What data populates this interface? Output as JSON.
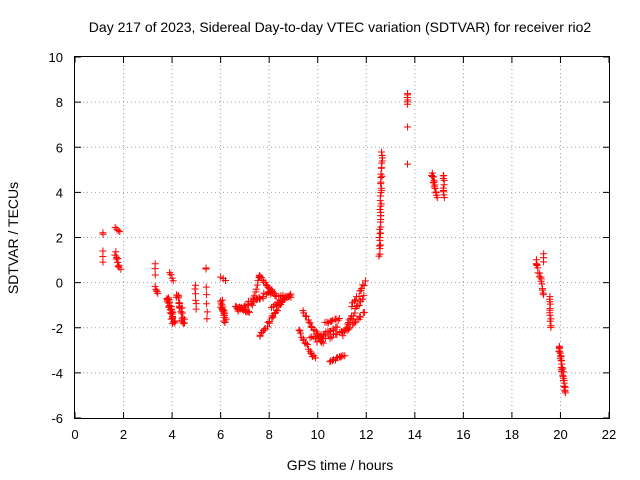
{
  "chart_data": {
    "type": "scatter",
    "title": "Day 217 of 2023, Sidereal Day-to-day VTEC variation (SDTVAR) for receiver rio2",
    "xlabel": "GPS time / hours",
    "ylabel": "SDTVAR / TECUs",
    "xlim": [
      0,
      22
    ],
    "ylim": [
      -6,
      10
    ],
    "xticks": [
      "0",
      "2",
      "4",
      "6",
      "8",
      "10",
      "12",
      "14",
      "16",
      "18",
      "20",
      "22"
    ],
    "yticks": [
      "-6",
      "-4",
      "-2",
      "0",
      "2",
      "4",
      "6",
      "8",
      "10"
    ],
    "grid": true,
    "marker": "+",
    "color": "#ff0000",
    "segments": [
      {
        "x0": 1.15,
        "y0": 2.15,
        "x1": 1.15,
        "y1": 2.2,
        "n": 2,
        "jitter": 0.02
      },
      {
        "x0": 1.15,
        "y0": 1.4,
        "x1": 1.15,
        "y1": 0.9,
        "n": 3,
        "jitter": 0.02
      },
      {
        "x0": 1.65,
        "y0": 2.45,
        "x1": 1.85,
        "y1": 2.25,
        "n": 4,
        "jitter": 0.04
      },
      {
        "x0": 1.65,
        "y0": 1.3,
        "x1": 1.85,
        "y1": 0.6,
        "n": 10,
        "jitter": 0.2
      },
      {
        "x0": 3.3,
        "y0": 0.85,
        "x1": 3.3,
        "y1": 0.35,
        "n": 3,
        "jitter": 0.05
      },
      {
        "x0": 3.3,
        "y0": -0.2,
        "x1": 3.4,
        "y1": -0.45,
        "n": 5,
        "jitter": 0.1
      },
      {
        "x0": 3.9,
        "y0": 0.45,
        "x1": 4.05,
        "y1": 0.1,
        "n": 4,
        "jitter": 0.05
      },
      {
        "x0": 3.8,
        "y0": -0.6,
        "x1": 4.1,
        "y1": -1.9,
        "n": 30,
        "jitter": 0.3
      },
      {
        "x0": 4.2,
        "y0": -0.5,
        "x1": 4.5,
        "y1": -1.8,
        "n": 24,
        "jitter": 0.3
      },
      {
        "x0": 4.95,
        "y0": -0.1,
        "x1": 5.0,
        "y1": -1.2,
        "n": 6,
        "jitter": 0.1
      },
      {
        "x0": 5.4,
        "y0": 0.6,
        "x1": 5.4,
        "y1": 0.65,
        "n": 2,
        "jitter": 0.02
      },
      {
        "x0": 5.4,
        "y0": -0.2,
        "x1": 5.45,
        "y1": -1.6,
        "n": 5,
        "jitter": 0.1
      },
      {
        "x0": 6.0,
        "y0": 0.25,
        "x1": 6.2,
        "y1": 0.1,
        "n": 3,
        "jitter": 0.05
      },
      {
        "x0": 6.0,
        "y0": -0.8,
        "x1": 6.2,
        "y1": -1.8,
        "n": 20,
        "jitter": 0.3
      },
      {
        "x0": 6.6,
        "y0": -1.1,
        "x1": 7.2,
        "y1": -1.3,
        "n": 14,
        "jitter": 0.1
      },
      {
        "x0": 6.7,
        "y0": -1.2,
        "x1": 8.1,
        "y1": -0.4,
        "n": 30,
        "jitter": 0.2
      },
      {
        "x0": 7.3,
        "y0": -1.0,
        "x1": 7.6,
        "y1": 0.35,
        "n": 10,
        "jitter": 0.1
      },
      {
        "x0": 7.6,
        "y0": 0.3,
        "x1": 8.3,
        "y1": -0.6,
        "n": 16,
        "jitter": 0.1
      },
      {
        "x0": 7.6,
        "y0": -2.4,
        "x1": 8.7,
        "y1": -0.6,
        "n": 26,
        "jitter": 0.15
      },
      {
        "x0": 8.1,
        "y0": -1.1,
        "x1": 8.9,
        "y1": -0.5,
        "n": 14,
        "jitter": 0.1
      },
      {
        "x0": 8.3,
        "y0": -0.6,
        "x1": 8.9,
        "y1": -0.6,
        "n": 8,
        "jitter": 0.1
      },
      {
        "x0": 9.2,
        "y0": -2.1,
        "x1": 9.9,
        "y1": -3.4,
        "n": 16,
        "jitter": 0.15
      },
      {
        "x0": 9.4,
        "y0": -1.3,
        "x1": 10.2,
        "y1": -2.7,
        "n": 18,
        "jitter": 0.15
      },
      {
        "x0": 9.7,
        "y0": -2.5,
        "x1": 10.8,
        "y1": -2.0,
        "n": 18,
        "jitter": 0.15
      },
      {
        "x0": 10.0,
        "y0": -2.6,
        "x1": 11.2,
        "y1": -2.1,
        "n": 16,
        "jitter": 0.15
      },
      {
        "x0": 10.3,
        "y0": -1.8,
        "x1": 10.9,
        "y1": -1.6,
        "n": 10,
        "jitter": 0.1
      },
      {
        "x0": 10.5,
        "y0": -3.5,
        "x1": 11.1,
        "y1": -3.2,
        "n": 12,
        "jitter": 0.1
      },
      {
        "x0": 11.0,
        "y0": -2.3,
        "x1": 11.9,
        "y1": -1.3,
        "n": 16,
        "jitter": 0.2
      },
      {
        "x0": 11.2,
        "y0": -1.9,
        "x1": 11.9,
        "y1": -0.6,
        "n": 16,
        "jitter": 0.2
      },
      {
        "x0": 11.4,
        "y0": -1.0,
        "x1": 12.0,
        "y1": 0.0,
        "n": 12,
        "jitter": 0.2
      },
      {
        "x0": 12.55,
        "y0": 1.2,
        "x1": 12.65,
        "y1": 5.8,
        "n": 36,
        "jitter": 0.15
      },
      {
        "x0": 13.7,
        "y0": 8.4,
        "x1": 13.7,
        "y1": 7.9,
        "n": 6,
        "jitter": 0.05
      },
      {
        "x0": 13.7,
        "y0": 6.9,
        "x1": 13.7,
        "y1": 6.9,
        "n": 1,
        "jitter": 0.0
      },
      {
        "x0": 13.7,
        "y0": 5.25,
        "x1": 13.7,
        "y1": 5.25,
        "n": 1,
        "jitter": 0.0
      },
      {
        "x0": 14.7,
        "y0": 4.9,
        "x1": 14.9,
        "y1": 3.8,
        "n": 14,
        "jitter": 0.15
      },
      {
        "x0": 15.2,
        "y0": 4.8,
        "x1": 15.2,
        "y1": 3.8,
        "n": 10,
        "jitter": 0.15
      },
      {
        "x0": 19.0,
        "y0": 1.0,
        "x1": 19.3,
        "y1": -0.5,
        "n": 16,
        "jitter": 0.15
      },
      {
        "x0": 19.3,
        "y0": 1.3,
        "x1": 19.3,
        "y1": 0.9,
        "n": 3,
        "jitter": 0.05
      },
      {
        "x0": 19.55,
        "y0": -0.6,
        "x1": 19.6,
        "y1": -2.0,
        "n": 12,
        "jitter": 0.1
      },
      {
        "x0": 19.95,
        "y0": -2.8,
        "x1": 20.2,
        "y1": -4.9,
        "n": 30,
        "jitter": 0.2
      }
    ]
  }
}
